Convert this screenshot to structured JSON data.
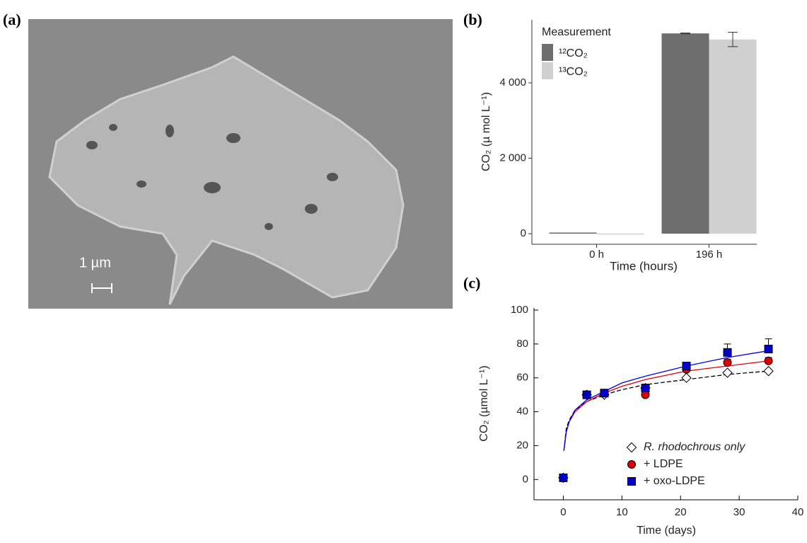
{
  "image_panel": {
    "label": "(a)",
    "scale_label": "1 µm"
  },
  "chart_data": [
    {
      "type": "bar",
      "panel_label": "(b)",
      "ylabel": "CO₂ (µ mol L⁻¹)",
      "xlabel": "Time (hours)",
      "legend_title": "Measurement",
      "categories": [
        "0 h",
        "196 h"
      ],
      "series": [
        {
          "name": "¹²CO₂",
          "color": "#6e6e6e",
          "values": [
            30,
            5310
          ],
          "errors": [
            null,
            10
          ]
        },
        {
          "name": "¹³CO₂",
          "color": "#d0d0d0",
          "values": [
            5,
            5150
          ],
          "errors": [
            null,
            190
          ]
        }
      ],
      "ylim": [
        -280,
        5670
      ],
      "yticks": [
        0,
        {
          "value": 2000,
          "label": "2 000"
        },
        {
          "value": 4000,
          "label": "4 000"
        }
      ]
    },
    {
      "type": "scatter",
      "panel_label": "(c)",
      "ylabel": "CO₂ (µmol L⁻¹)",
      "xlabel": "Time (days)",
      "x": [
        0,
        4,
        7,
        14,
        21,
        28,
        35
      ],
      "fit_x": [
        0.1,
        0.5,
        1,
        2,
        4,
        7,
        10,
        14,
        21,
        28,
        35
      ],
      "series": [
        {
          "name": "R. rhodochrous only",
          "color": "#ffffff",
          "line_color": "#000000",
          "marker": "diamond",
          "values": [
            1,
            50,
            50,
            54,
            60,
            63,
            64
          ],
          "errors": [
            null,
            null,
            null,
            null,
            null,
            null,
            null
          ],
          "fit": [
            17,
            30,
            35,
            41,
            46,
            50,
            53,
            56,
            59,
            62,
            64
          ]
        },
        {
          "name": "+ LDPE",
          "color": "#e00000",
          "line_color": "#e00000",
          "marker": "circle",
          "values": [
            1,
            50,
            51,
            50,
            65,
            69,
            70
          ],
          "errors": [
            null,
            null,
            null,
            null,
            null,
            2,
            2
          ],
          "fit": [
            17,
            28,
            34,
            40,
            46,
            51,
            55,
            59,
            64,
            67,
            70
          ]
        },
        {
          "name": "+ oxo-LDPE",
          "color": "#0000cc",
          "line_color": "#0000ee",
          "marker": "square",
          "values": [
            1,
            50,
            51,
            54,
            67,
            75,
            77
          ],
          "errors": [
            null,
            null,
            null,
            null,
            2,
            5,
            6
          ],
          "fit": [
            17,
            28,
            34,
            41,
            47,
            52,
            57,
            61,
            67,
            72,
            76
          ]
        }
      ],
      "xlim": [
        -5,
        40
      ],
      "xticks": [
        0,
        10,
        20,
        30,
        40
      ],
      "ylim": [
        -12,
        100
      ],
      "yticks": [
        0,
        20,
        40,
        60,
        80,
        100
      ]
    }
  ]
}
